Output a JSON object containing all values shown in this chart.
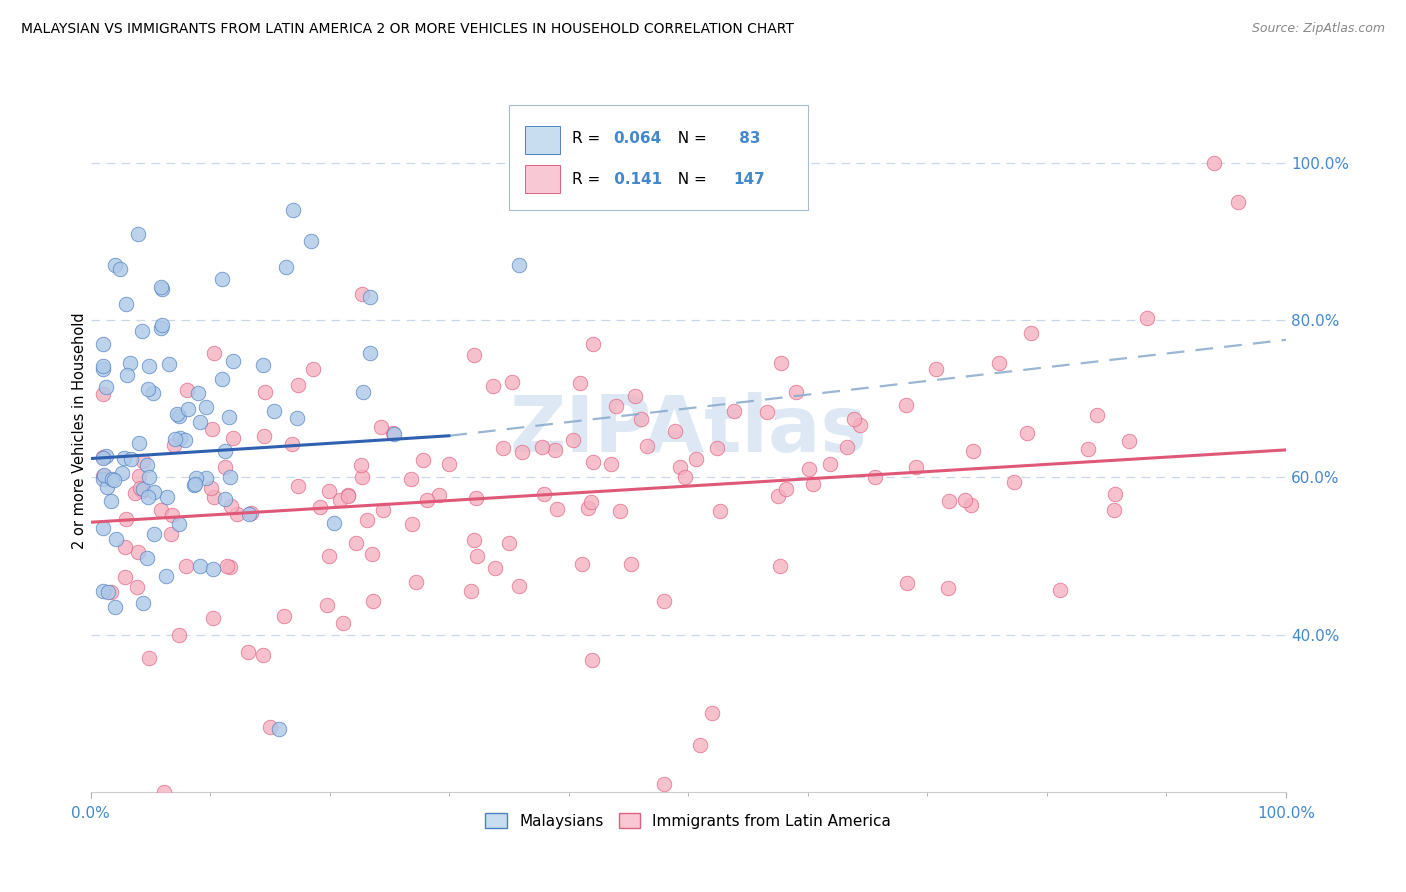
{
  "title": "MALAYSIAN VS IMMIGRANTS FROM LATIN AMERICA 2 OR MORE VEHICLES IN HOUSEHOLD CORRELATION CHART",
  "source": "Source: ZipAtlas.com",
  "ylabel": "2 or more Vehicles in Household",
  "right_ytick_vals": [
    0.4,
    0.6,
    0.8,
    1.0
  ],
  "right_ytick_labels": [
    "40.0%",
    "60.0%",
    "80.0%",
    "100.0%"
  ],
  "blue_R": 0.064,
  "blue_N": 83,
  "pink_R": 0.141,
  "pink_N": 147,
  "blue_fill_color": "#adc8e8",
  "pink_fill_color": "#f4b0c0",
  "blue_edge_color": "#5080c0",
  "pink_edge_color": "#e06080",
  "blue_line_color": "#3060b0",
  "pink_line_color": "#e05878",
  "blue_dash_color": "#88aacc",
  "legend_blue_face": "#c8ddf0",
  "legend_pink_face": "#f8c8d4",
  "title_fontsize": 10.5,
  "axis_tick_color": "#4488cc",
  "grid_color": "#c8d8e8",
  "watermark_color": "#dde8f4",
  "xlim": [
    0.0,
    1.0
  ],
  "ylim": [
    0.2,
    1.12
  ],
  "blue_trend": [
    0.0,
    0.3,
    0.624,
    0.653
  ],
  "pink_trend": [
    0.0,
    1.0,
    0.543,
    0.635
  ],
  "blue_dash_trend": [
    0.3,
    1.0,
    0.653,
    0.775
  ]
}
